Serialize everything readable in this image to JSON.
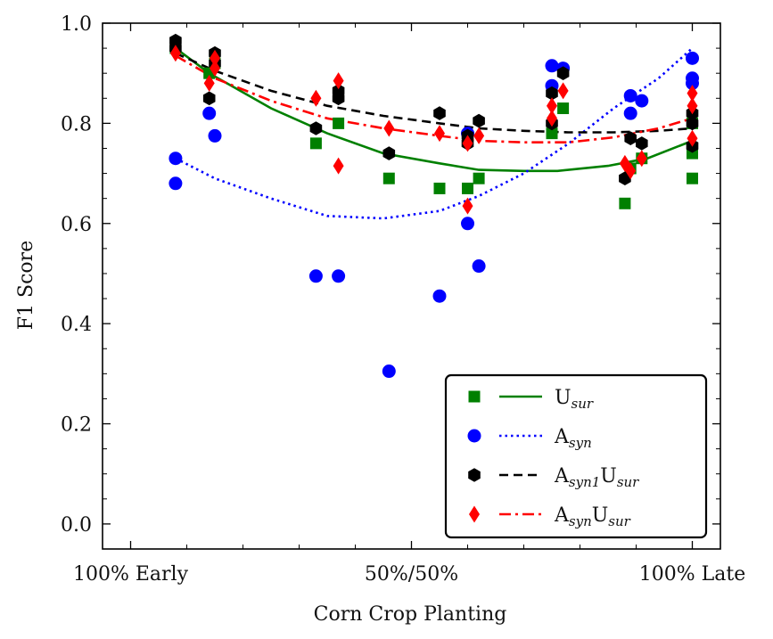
{
  "chart_data": {
    "type": "scatter",
    "xlabel": "Corn Crop Planting",
    "ylabel": "F1 Score",
    "xlim": [
      -0.05,
      1.05
    ],
    "ylim": [
      -0.05,
      1.0
    ],
    "x_ticks": [
      {
        "value": 0.0,
        "label": "100% Early"
      },
      {
        "value": 0.5,
        "label": "50%/50%"
      },
      {
        "value": 1.0,
        "label": "100% Late"
      }
    ],
    "y_ticks": [
      {
        "value": 0.0,
        "label": "0.0"
      },
      {
        "value": 0.2,
        "label": "0.2"
      },
      {
        "value": 0.4,
        "label": "0.4"
      },
      {
        "value": 0.6,
        "label": "0.6"
      },
      {
        "value": 0.8,
        "label": "0.8"
      },
      {
        "value": 1.0,
        "label": "1.0"
      }
    ],
    "legend_position": "lower-right",
    "series": [
      {
        "name": "U_sur",
        "legend_main": "U",
        "legend_sub": "sur",
        "color": "#008000",
        "marker": "square",
        "line_style": "solid",
        "points": [
          [
            0.08,
            0.95
          ],
          [
            0.14,
            0.9
          ],
          [
            0.15,
            0.92
          ],
          [
            0.33,
            0.76
          ],
          [
            0.37,
            0.8
          ],
          [
            0.46,
            0.69
          ],
          [
            0.55,
            0.67
          ],
          [
            0.6,
            0.67
          ],
          [
            0.62,
            0.69
          ],
          [
            0.75,
            0.78
          ],
          [
            0.77,
            0.83
          ],
          [
            0.88,
            0.64
          ],
          [
            0.89,
            0.71
          ],
          [
            0.91,
            0.73
          ],
          [
            1.0,
            0.69
          ],
          [
            1.0,
            0.74
          ],
          [
            1.0,
            0.8
          ]
        ],
        "fit": [
          [
            0.08,
            0.95
          ],
          [
            0.14,
            0.9
          ],
          [
            0.25,
            0.83
          ],
          [
            0.35,
            0.78
          ],
          [
            0.45,
            0.74
          ],
          [
            0.55,
            0.72
          ],
          [
            0.62,
            0.707
          ],
          [
            0.7,
            0.705
          ],
          [
            0.76,
            0.705
          ],
          [
            0.85,
            0.715
          ],
          [
            0.92,
            0.73
          ],
          [
            1.0,
            0.765
          ]
        ]
      },
      {
        "name": "A_syn",
        "legend_main": "A",
        "legend_sub": "syn",
        "color": "#0000ff",
        "marker": "circle",
        "line_style": "dotted",
        "points": [
          [
            0.08,
            0.73
          ],
          [
            0.08,
            0.68
          ],
          [
            0.14,
            0.82
          ],
          [
            0.15,
            0.775
          ],
          [
            0.33,
            0.495
          ],
          [
            0.37,
            0.495
          ],
          [
            0.46,
            0.305
          ],
          [
            0.55,
            0.455
          ],
          [
            0.6,
            0.6
          ],
          [
            0.6,
            0.78
          ],
          [
            0.62,
            0.515
          ],
          [
            0.75,
            0.915
          ],
          [
            0.75,
            0.875
          ],
          [
            0.77,
            0.91
          ],
          [
            0.89,
            0.855
          ],
          [
            0.89,
            0.82
          ],
          [
            0.91,
            0.845
          ],
          [
            1.0,
            0.93
          ],
          [
            1.0,
            0.89
          ],
          [
            1.0,
            0.88
          ]
        ],
        "fit": [
          [
            0.08,
            0.73
          ],
          [
            0.15,
            0.69
          ],
          [
            0.25,
            0.65
          ],
          [
            0.35,
            0.615
          ],
          [
            0.45,
            0.61
          ],
          [
            0.55,
            0.625
          ],
          [
            0.62,
            0.655
          ],
          [
            0.7,
            0.7
          ],
          [
            0.78,
            0.76
          ],
          [
            0.86,
            0.83
          ],
          [
            0.94,
            0.89
          ],
          [
            1.0,
            0.95
          ]
        ]
      },
      {
        "name": "A_syn1U_sur",
        "legend_main": "A",
        "legend_sub": "syn1",
        "legend_main2": "U",
        "legend_sub2": "sur",
        "color": "#000000",
        "marker": "hexagon",
        "line_style": "dashed",
        "points": [
          [
            0.08,
            0.965
          ],
          [
            0.08,
            0.95
          ],
          [
            0.14,
            0.85
          ],
          [
            0.15,
            0.94
          ],
          [
            0.15,
            0.92
          ],
          [
            0.33,
            0.79
          ],
          [
            0.37,
            0.865
          ],
          [
            0.37,
            0.85
          ],
          [
            0.46,
            0.74
          ],
          [
            0.55,
            0.82
          ],
          [
            0.6,
            0.775
          ],
          [
            0.6,
            0.76
          ],
          [
            0.62,
            0.805
          ],
          [
            0.75,
            0.86
          ],
          [
            0.75,
            0.8
          ],
          [
            0.77,
            0.9
          ],
          [
            0.88,
            0.69
          ],
          [
            0.89,
            0.77
          ],
          [
            0.91,
            0.76
          ],
          [
            1.0,
            0.82
          ],
          [
            1.0,
            0.8
          ],
          [
            1.0,
            0.755
          ]
        ],
        "fit": [
          [
            0.08,
            0.94
          ],
          [
            0.15,
            0.905
          ],
          [
            0.25,
            0.865
          ],
          [
            0.35,
            0.835
          ],
          [
            0.45,
            0.815
          ],
          [
            0.55,
            0.8
          ],
          [
            0.62,
            0.79
          ],
          [
            0.7,
            0.785
          ],
          [
            0.78,
            0.782
          ],
          [
            0.86,
            0.782
          ],
          [
            0.94,
            0.785
          ],
          [
            1.0,
            0.79
          ]
        ]
      },
      {
        "name": "A_synU_sur",
        "legend_main": "A",
        "legend_sub": "syn",
        "legend_main2": "U",
        "legend_sub2": "sur",
        "color": "#ff0000",
        "marker": "diamond",
        "line_style": "dashdot",
        "points": [
          [
            0.08,
            0.94
          ],
          [
            0.14,
            0.88
          ],
          [
            0.15,
            0.93
          ],
          [
            0.15,
            0.91
          ],
          [
            0.33,
            0.85
          ],
          [
            0.37,
            0.885
          ],
          [
            0.37,
            0.715
          ],
          [
            0.46,
            0.79
          ],
          [
            0.55,
            0.78
          ],
          [
            0.6,
            0.635
          ],
          [
            0.6,
            0.76
          ],
          [
            0.62,
            0.775
          ],
          [
            0.75,
            0.835
          ],
          [
            0.75,
            0.81
          ],
          [
            0.77,
            0.865
          ],
          [
            0.88,
            0.72
          ],
          [
            0.89,
            0.705
          ],
          [
            0.91,
            0.73
          ],
          [
            1.0,
            0.86
          ],
          [
            1.0,
            0.835
          ],
          [
            1.0,
            0.77
          ]
        ],
        "fit": [
          [
            0.08,
            0.935
          ],
          [
            0.15,
            0.89
          ],
          [
            0.25,
            0.845
          ],
          [
            0.35,
            0.81
          ],
          [
            0.45,
            0.79
          ],
          [
            0.55,
            0.775
          ],
          [
            0.62,
            0.765
          ],
          [
            0.7,
            0.762
          ],
          [
            0.78,
            0.762
          ],
          [
            0.86,
            0.772
          ],
          [
            0.94,
            0.79
          ],
          [
            1.0,
            0.81
          ]
        ]
      }
    ]
  }
}
